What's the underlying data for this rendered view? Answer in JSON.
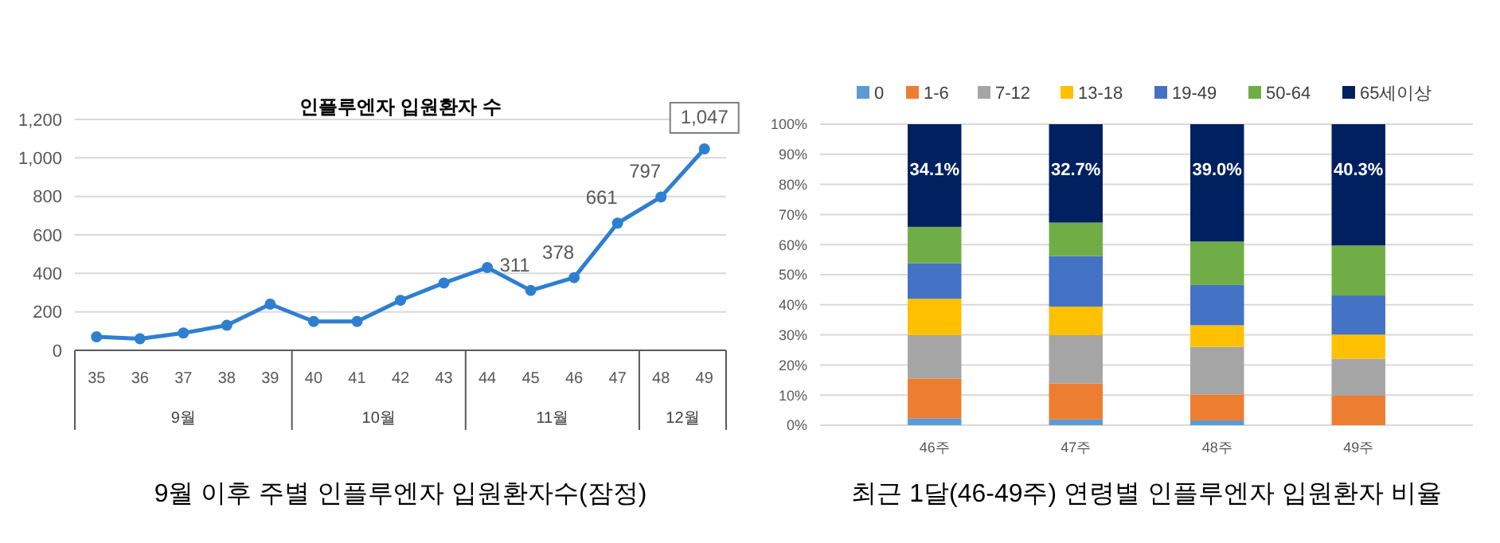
{
  "chart_data": [
    {
      "type": "line",
      "title": "인플루엔자 입원환자 수",
      "categories": [
        "35",
        "36",
        "37",
        "38",
        "39",
        "40",
        "41",
        "42",
        "43",
        "44",
        "45",
        "46",
        "47",
        "48",
        "49"
      ],
      "series": [
        {
          "color": "#2f7fd0",
          "values": [
            70,
            60,
            90,
            130,
            240,
            150,
            150,
            260,
            350,
            430,
            311,
            378,
            661,
            797,
            1047
          ],
          "value_labels": [
            null,
            null,
            null,
            null,
            null,
            null,
            null,
            null,
            null,
            null,
            "311",
            "378",
            "661",
            "797",
            "1,047"
          ]
        }
      ],
      "ylim": [
        0,
        1200
      ],
      "yticks": [
        0,
        200,
        400,
        600,
        800,
        {
          "value": 1000,
          "label": "1,000"
        },
        {
          "value": 1200,
          "label": "1,200"
        }
      ],
      "grid": "y",
      "marker": "circle",
      "line_style": "solid",
      "legend": false,
      "annotations": [
        "9월",
        "10월",
        "11월",
        "12월",
        "9월 이후 주별 인플루엔자 입원환자수(잠정)"
      ]
    },
    {
      "type": "bar",
      "stacked": true,
      "categories": [
        "46주",
        "47주",
        "48주",
        "49주"
      ],
      "series": [
        {
          "name": "0",
          "color": "#5b9bd5",
          "values": [
            2.3,
            1.9,
            1.6,
            0
          ]
        },
        {
          "name": "1-6",
          "color": "#ed7d31",
          "values": [
            13.2,
            12.0,
            8.6,
            9.8
          ]
        },
        {
          "name": "7-12",
          "color": "#a5a5a5",
          "values": [
            14.4,
            16.0,
            15.8,
            12.3
          ]
        },
        {
          "name": "13-18",
          "color": "#ffc000",
          "values": [
            12.1,
            9.5,
            7.2,
            8.0
          ]
        },
        {
          "name": "19-49",
          "color": "#4472c4",
          "values": [
            11.8,
            16.8,
            13.4,
            13.0
          ]
        },
        {
          "name": "50-64",
          "color": "#70ad47",
          "values": [
            12.1,
            11.1,
            14.4,
            16.6
          ]
        },
        {
          "name": "65세이상",
          "color": "#002060",
          "values": [
            34.1,
            32.7,
            39.0,
            40.3
          ],
          "value_labels": [
            "34.1%",
            "32.7%",
            "39.0%",
            "40.3%"
          ]
        }
      ],
      "ylim": [
        0,
        100
      ],
      "yticks": [
        {
          "value": 0,
          "label": "0%"
        },
        {
          "value": 10,
          "label": "10%"
        },
        {
          "value": 20,
          "label": "20%"
        },
        {
          "value": 30,
          "label": "30%"
        },
        {
          "value": 40,
          "label": "40%"
        },
        {
          "value": 50,
          "label": "50%"
        },
        {
          "value": 60,
          "label": "60%"
        },
        {
          "value": 70,
          "label": "70%"
        },
        {
          "value": 80,
          "label": "80%"
        },
        {
          "value": 90,
          "label": "90%"
        },
        {
          "value": 100,
          "label": "100%"
        }
      ],
      "grid": "y",
      "legend": "top",
      "annotations": [
        "최근 1달(46-49주) 연령별 인플루엔자 입원환자 비율"
      ]
    }
  ]
}
